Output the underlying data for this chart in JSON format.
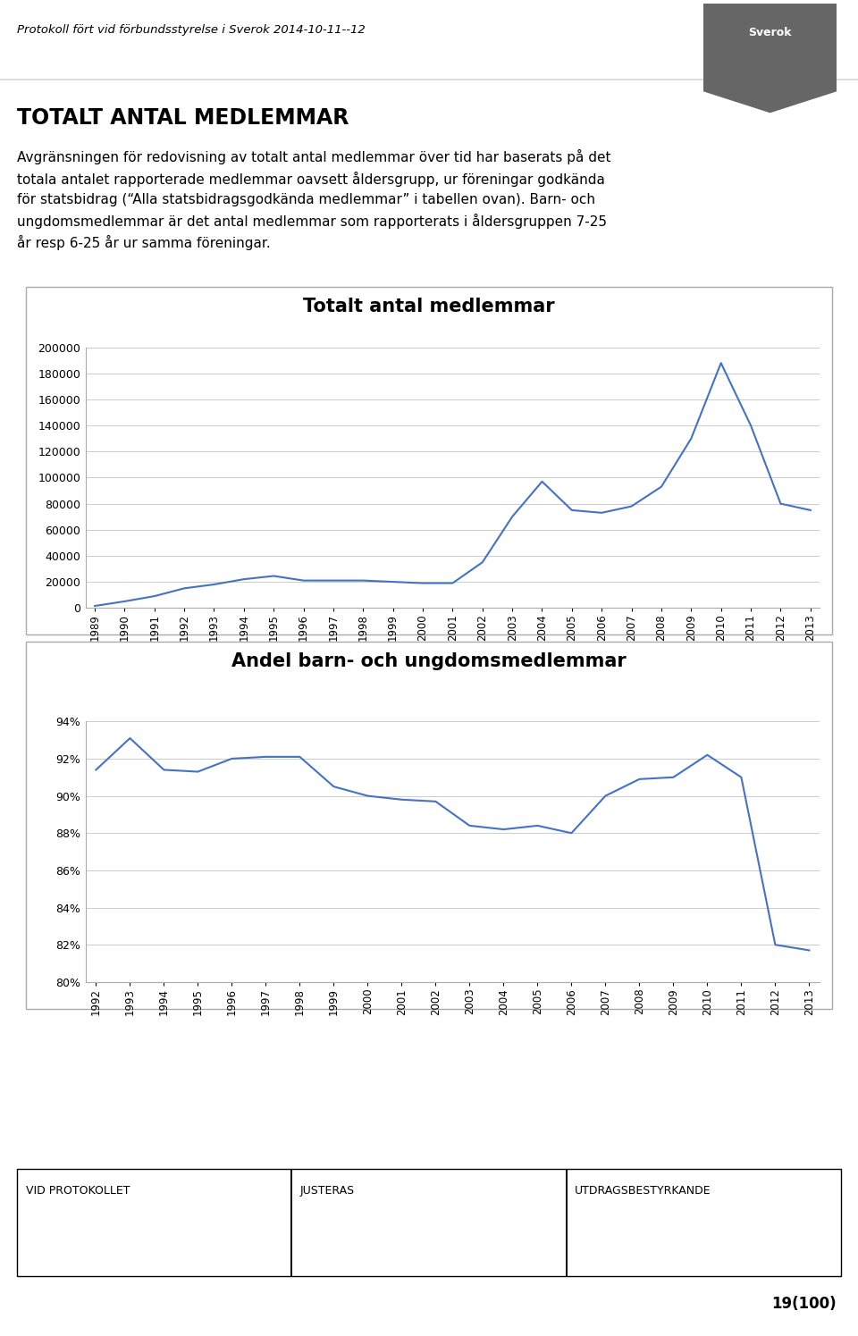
{
  "header_text": "Protokoll fört vid förbundsstyrelse i Sverok 2014-10-11--12",
  "title": "TOTALT ANTAL MEDLEMMAR",
  "body_lines": [
    "Avgränsningen för redovisning av totalt antal medlemmar över tid har baserats på det",
    "totala antalet rapporterade medlemmar oavsett åldersgrupp, ur föreningar godkända",
    "för statsbidrag (“Alla statsbidragsgodkända medlemmar” i tabellen ovan). Barn- och",
    "ungdomsmedlemmar är det antal medlemmar som rapporterats i åldersgruppen 7-25",
    "år resp 6-25 år ur samma föreningar."
  ],
  "chart1_title": "Totalt antal medlemmar",
  "chart1_years": [
    1989,
    1990,
    1991,
    1992,
    1993,
    1994,
    1995,
    1996,
    1997,
    1998,
    1999,
    2000,
    2001,
    2002,
    2003,
    2004,
    2005,
    2006,
    2007,
    2008,
    2009,
    2010,
    2011,
    2012,
    2013
  ],
  "chart1_values": [
    1500,
    5000,
    9000,
    15000,
    18000,
    22000,
    24500,
    21000,
    21000,
    21000,
    20000,
    19000,
    19000,
    35000,
    70000,
    97000,
    75000,
    73000,
    78000,
    93000,
    130000,
    188000,
    140000,
    80000,
    75000
  ],
  "chart1_ylim": [
    0,
    200000
  ],
  "chart1_yticks": [
    0,
    20000,
    40000,
    60000,
    80000,
    100000,
    120000,
    140000,
    160000,
    180000,
    200000
  ],
  "chart1_line_color": "#4472C4",
  "chart2_title": "Andel barn- och ungdomsmedlemmar",
  "chart2_years": [
    1992,
    1993,
    1994,
    1995,
    1996,
    1997,
    1998,
    1999,
    2000,
    2001,
    2002,
    2003,
    2004,
    2005,
    2006,
    2007,
    2008,
    2009,
    2010,
    2011,
    2012,
    2013
  ],
  "chart2_values": [
    0.914,
    0.931,
    0.914,
    0.913,
    0.92,
    0.921,
    0.921,
    0.905,
    0.9,
    0.898,
    0.897,
    0.884,
    0.882,
    0.884,
    0.88,
    0.9,
    0.909,
    0.91,
    0.922,
    0.91,
    0.82,
    0.817
  ],
  "chart2_ylim": [
    0.8,
    0.94
  ],
  "chart2_yticks": [
    0.8,
    0.82,
    0.84,
    0.86,
    0.88,
    0.9,
    0.92,
    0.94
  ],
  "chart2_line_color": "#4472C4",
  "bg_color": "#ffffff",
  "footer_left": "VID PROTOKOLLET",
  "footer_mid": "JUSTERAS",
  "footer_right": "UTDRAGSBESTYRKANDE",
  "footer_page": "19(100)",
  "logo_bg": "#555555",
  "grid_color": "#cccccc",
  "spine_color": "#aaaaaa",
  "box_color": "#aaaaaa"
}
